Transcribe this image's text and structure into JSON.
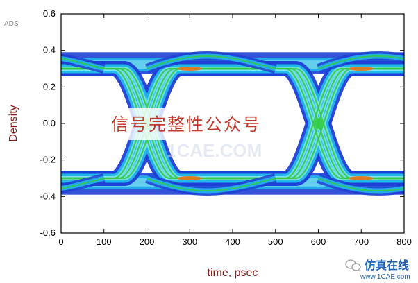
{
  "corner_label": "ADS",
  "watermark": {
    "text": "信号完整性公众号",
    "ghost_text": "1CAE.COM",
    "brand_text": "仿真在线",
    "brand_url": "www.1CAE.com"
  },
  "colors": {
    "outer": "#1f3fd6",
    "mid": "#22b8ea",
    "inner": "#7fe0f0",
    "green": "#33cc44",
    "hot": "#e8741a",
    "axis_title": "#8b1a1a"
  },
  "chart_data": {
    "type": "eye-diagram",
    "title": "",
    "xlabel": "time, psec",
    "ylabel": "Density",
    "xlim": [
      0,
      800
    ],
    "ylim": [
      -0.6,
      0.6
    ],
    "xticks": [
      0,
      100,
      200,
      300,
      400,
      500,
      600,
      700,
      800
    ],
    "yticks": [
      0.6,
      0.4,
      0.2,
      0.0,
      -0.2,
      -0.4,
      -0.6
    ],
    "ytick_labels": [
      "0.6",
      "0.4",
      "0.2",
      "0.0",
      "-0.2",
      "-0.4",
      "-0.6"
    ],
    "unit_interval_ps": 400,
    "crossing_times_ps": [
      200,
      600
    ],
    "levels": {
      "high": 0.3,
      "low": -0.3
    },
    "level_spread": {
      "outer": [
        0.27,
        0.39
      ],
      "inner": [
        0.28,
        0.36
      ]
    },
    "grid": false,
    "legend": "none"
  }
}
